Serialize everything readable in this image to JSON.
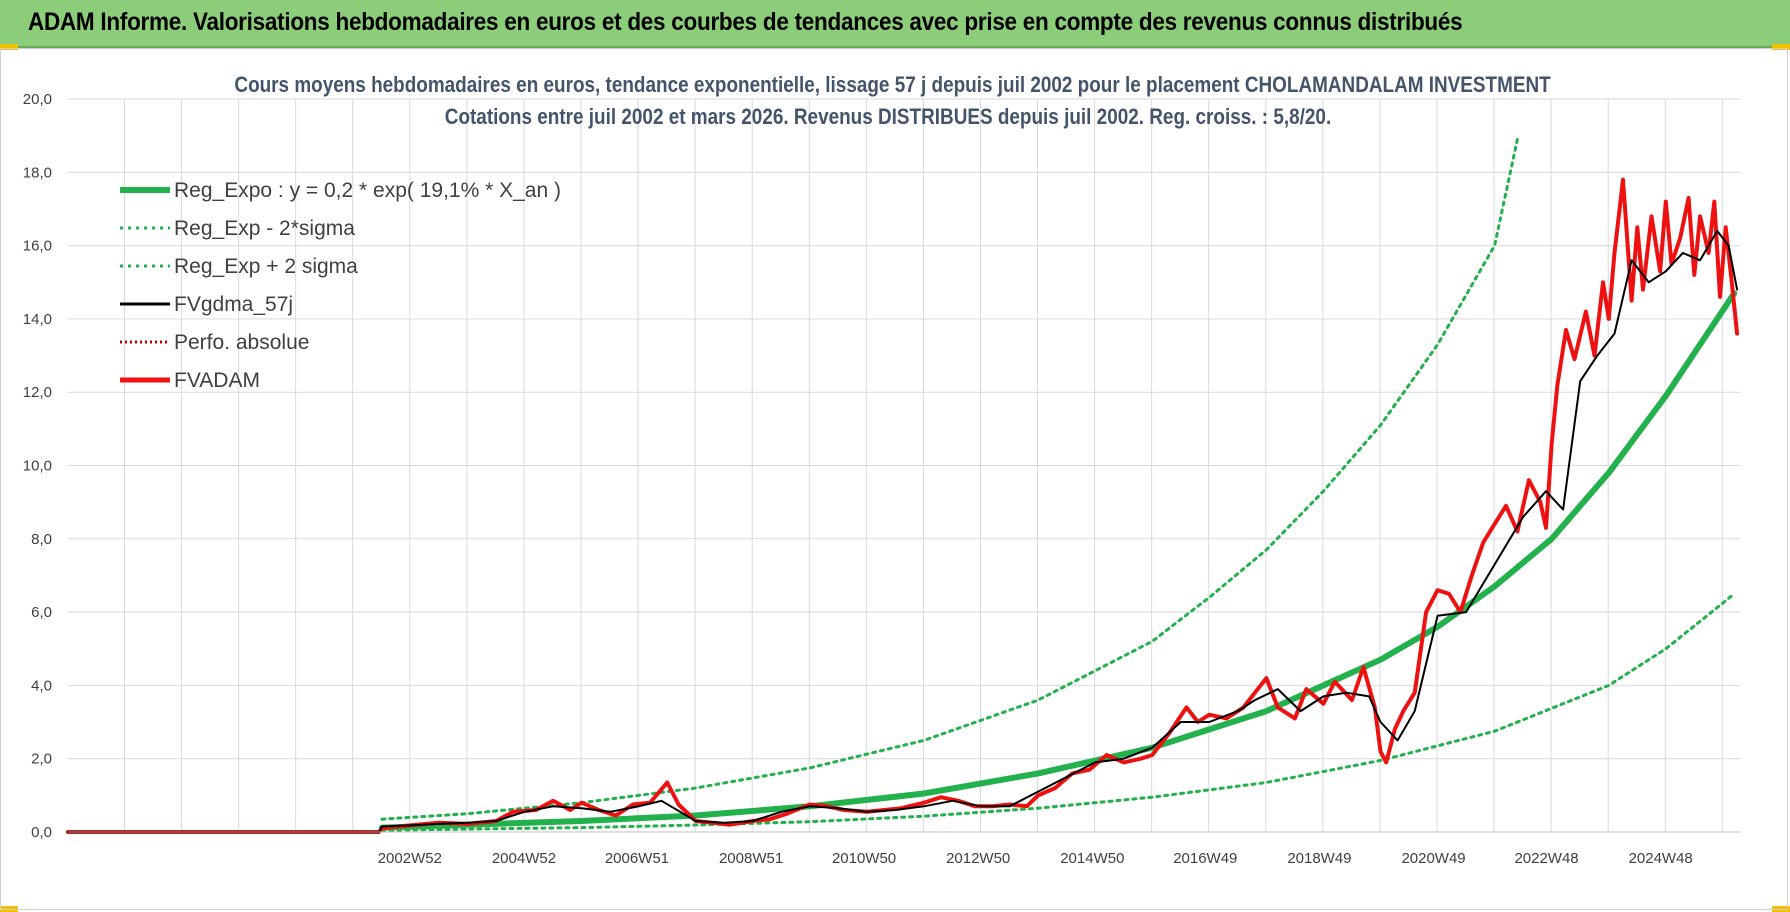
{
  "banner": {
    "title": "ADAM Informe. Valorisations hebdomadaires en euros et des courbes de tendances avec prise en compte des revenus connus distribués"
  },
  "colors": {
    "banner": "#8ccd7a",
    "title": "#44546a",
    "trend": "#22b14c",
    "sigma": "#22b14c",
    "smooth": "#000000",
    "perfo": "#c00000",
    "fvadam": "#ee1111",
    "grid": "#d9d9d9"
  },
  "chart_data": {
    "type": "line",
    "title": "Cours moyens hebdomadaires en euros, tendance exponentielle, lissage 57 j depuis juil 2002 pour le placement CHOLAMANDALAM INVESTMENT",
    "subtitle": "Cotations entre juil 2002 et mars 2026. Revenus DISTRIBUES depuis juil 2002. Reg. croiss. : 5,8/20.",
    "xlabel": "",
    "ylabel": "",
    "ylim": [
      0,
      20
    ],
    "xlim": [
      1997.0,
      2026.3
    ],
    "yticks": [
      "0,0",
      "2,0",
      "4,0",
      "6,0",
      "8,0",
      "10,0",
      "12,0",
      "14,0",
      "16,0",
      "18,0",
      "20,0"
    ],
    "x_ticks": [
      {
        "label": "2002W52",
        "x": 2002.99
      },
      {
        "label": "2004W52",
        "x": 2004.99
      },
      {
        "label": "2006W51",
        "x": 2006.97
      },
      {
        "label": "2008W51",
        "x": 2008.97
      },
      {
        "label": "2010W50",
        "x": 2010.95
      },
      {
        "label": "2012W50",
        "x": 2012.95
      },
      {
        "label": "2014W50",
        "x": 2014.95
      },
      {
        "label": "2016W49",
        "x": 2016.93
      },
      {
        "label": "2018W49",
        "x": 2018.93
      },
      {
        "label": "2020W49",
        "x": 2020.93
      },
      {
        "label": "2022W48",
        "x": 2022.91
      },
      {
        "label": "2024W48",
        "x": 2024.91
      }
    ],
    "series": [
      {
        "name": "Reg_Expo : y = 0,2 * exp( 19,1% *  X_an )",
        "style": "trend",
        "x": [
          2002.5,
          2004,
          2006,
          2008,
          2010,
          2012,
          2014,
          2016,
          2017,
          2018,
          2019,
          2020,
          2021,
          2022,
          2023,
          2024,
          2025,
          2026.2
        ],
        "y": [
          0.12,
          0.2,
          0.3,
          0.45,
          0.7,
          1.05,
          1.6,
          2.3,
          2.8,
          3.3,
          4.0,
          4.7,
          5.6,
          6.7,
          8.0,
          9.8,
          11.9,
          14.7
        ]
      },
      {
        "name": "Reg_Exp - 2*sigma",
        "style": "sigma",
        "x": [
          2002.5,
          2004,
          2006,
          2008,
          2010,
          2012,
          2014,
          2016,
          2018,
          2020,
          2022,
          2024,
          2025,
          2026.2
        ],
        "y": [
          0.05,
          0.08,
          0.12,
          0.19,
          0.28,
          0.43,
          0.65,
          0.95,
          1.35,
          1.95,
          2.75,
          4.0,
          5.0,
          6.5
        ]
      },
      {
        "name": "Reg_Exp + 2 sigma",
        "style": "sigma",
        "x": [
          2002.5,
          2004,
          2006,
          2008,
          2010,
          2012,
          2014,
          2016,
          2017,
          2018,
          2019,
          2020,
          2021,
          2022,
          2022.4
        ],
        "y": [
          0.35,
          0.5,
          0.8,
          1.2,
          1.75,
          2.5,
          3.6,
          5.2,
          6.4,
          7.7,
          9.3,
          11.1,
          13.3,
          16.0,
          18.9
        ]
      },
      {
        "name": "FVgdma_57j",
        "style": "smooth",
        "x": [
          1997.0,
          2002.45,
          2002.5,
          2003.0,
          2003.5,
          2004.0,
          2004.5,
          2005.0,
          2005.5,
          2006.0,
          2006.5,
          2007.0,
          2007.4,
          2008.0,
          2008.5,
          2009.0,
          2009.5,
          2010.0,
          2010.5,
          2011.0,
          2011.5,
          2012.0,
          2012.5,
          2013.0,
          2013.5,
          2014.0,
          2014.5,
          2015.0,
          2015.5,
          2016.0,
          2016.5,
          2017.0,
          2017.5,
          2017.8,
          2018.2,
          2018.6,
          2019.0,
          2019.4,
          2019.8,
          2020.0,
          2020.3,
          2020.6,
          2021.0,
          2021.5,
          2022.0,
          2022.5,
          2022.9,
          2023.2,
          2023.5,
          2023.8,
          2024.1,
          2024.4,
          2024.7,
          2025.0,
          2025.3,
          2025.6,
          2025.9,
          2026.1,
          2026.25
        ],
        "y": [
          0,
          0,
          0.15,
          0.18,
          0.22,
          0.25,
          0.3,
          0.55,
          0.7,
          0.65,
          0.55,
          0.7,
          0.85,
          0.3,
          0.25,
          0.3,
          0.55,
          0.7,
          0.65,
          0.55,
          0.6,
          0.7,
          0.85,
          0.7,
          0.7,
          1.1,
          1.5,
          1.9,
          2.0,
          2.3,
          3.0,
          3.0,
          3.3,
          3.6,
          3.9,
          3.3,
          3.7,
          3.8,
          3.7,
          3.0,
          2.5,
          3.3,
          5.9,
          6.0,
          7.3,
          8.6,
          9.3,
          8.8,
          12.3,
          13.0,
          13.6,
          15.6,
          15.0,
          15.3,
          15.8,
          15.6,
          16.4,
          16.0,
          14.8
        ]
      },
      {
        "name": "Perfo. absolue",
        "style": "perfo",
        "x": [],
        "y": []
      },
      {
        "name": "FVADAM",
        "style": "fvadam",
        "x": [
          1997.0,
          2002.45,
          2002.5,
          2003.0,
          2003.5,
          2004.0,
          2004.5,
          2004.8,
          2005.2,
          2005.5,
          2005.8,
          2006.0,
          2006.3,
          2006.6,
          2006.9,
          2007.2,
          2007.5,
          2007.7,
          2008.0,
          2008.3,
          2008.6,
          2009.0,
          2009.3,
          2009.6,
          2010.0,
          2010.3,
          2010.6,
          2011.0,
          2011.3,
          2011.6,
          2012.0,
          2012.3,
          2012.6,
          2012.9,
          2013.2,
          2013.5,
          2013.8,
          2014.0,
          2014.3,
          2014.6,
          2014.9,
          2015.2,
          2015.5,
          2015.8,
          2016.0,
          2016.3,
          2016.6,
          2016.8,
          2017.0,
          2017.3,
          2017.6,
          2017.8,
          2018.0,
          2018.2,
          2018.5,
          2018.7,
          2019.0,
          2019.2,
          2019.5,
          2019.7,
          2019.9,
          2020.0,
          2020.1,
          2020.25,
          2020.4,
          2020.6,
          2020.8,
          2021.0,
          2021.2,
          2021.4,
          2021.6,
          2021.8,
          2022.0,
          2022.2,
          2022.4,
          2022.6,
          2022.8,
          2022.9,
          2023.0,
          2023.1,
          2023.25,
          2023.4,
          2023.6,
          2023.75,
          2023.9,
          2024.0,
          2024.1,
          2024.25,
          2024.4,
          2024.5,
          2024.6,
          2024.75,
          2024.9,
          2025.0,
          2025.1,
          2025.25,
          2025.4,
          2025.5,
          2025.6,
          2025.75,
          2025.85,
          2025.95,
          2026.05,
          2026.15,
          2026.25
        ],
        "y": [
          0,
          0,
          0.1,
          0.18,
          0.25,
          0.22,
          0.3,
          0.55,
          0.6,
          0.85,
          0.6,
          0.8,
          0.6,
          0.45,
          0.75,
          0.8,
          1.35,
          0.75,
          0.3,
          0.25,
          0.2,
          0.3,
          0.35,
          0.5,
          0.75,
          0.7,
          0.6,
          0.55,
          0.6,
          0.65,
          0.8,
          0.95,
          0.85,
          0.7,
          0.7,
          0.75,
          0.7,
          1.0,
          1.2,
          1.6,
          1.7,
          2.1,
          1.9,
          2.0,
          2.1,
          2.7,
          3.4,
          3.0,
          3.2,
          3.1,
          3.4,
          3.8,
          4.2,
          3.4,
          3.1,
          3.9,
          3.5,
          4.1,
          3.6,
          4.5,
          3.4,
          2.2,
          1.9,
          2.8,
          3.3,
          3.8,
          6.0,
          6.6,
          6.5,
          6.0,
          7.0,
          7.9,
          8.4,
          8.9,
          8.2,
          9.6,
          9.0,
          8.3,
          10.6,
          12.2,
          13.7,
          12.9,
          14.2,
          13.0,
          15.0,
          14.0,
          15.8,
          17.8,
          14.5,
          16.5,
          14.8,
          16.8,
          15.3,
          17.2,
          15.5,
          16.2,
          17.3,
          15.2,
          16.8,
          15.8,
          17.2,
          14.6,
          16.5,
          15.1,
          13.6
        ]
      }
    ]
  }
}
